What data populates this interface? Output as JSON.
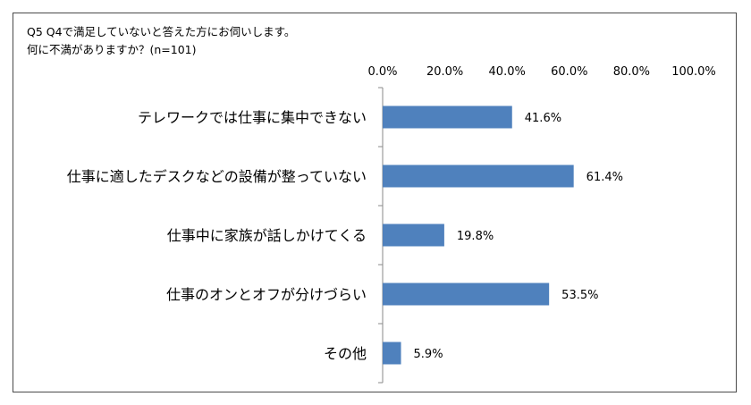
{
  "chart_data": {
    "type": "bar",
    "orientation": "horizontal",
    "title_line1": "Q5 Q4で満足していないと答えた方にお伺いします。",
    "title_line2": "何に不満がありますか？(n=101)",
    "xlim": [
      0,
      100
    ],
    "x_ticks": [
      "0.0%",
      "20.0%",
      "40.0%",
      "60.0%",
      "80.0%",
      "100.0%"
    ],
    "categories": [
      "テレワークでは仕事に集中できない",
      "仕事に適したデスクなどの設備が整っていない",
      "仕事中に家族が話しかけてくる",
      "仕事のオンとオフが分けづらい",
      "その他"
    ],
    "values": [
      41.6,
      61.4,
      19.8,
      53.5,
      5.9
    ],
    "data_labels": [
      "41.6%",
      "61.4%",
      "19.8%",
      "53.5%",
      "5.9%"
    ],
    "bar_color": "#4f81bd",
    "x_axis_position": "top",
    "grid": false,
    "legend": "none"
  }
}
